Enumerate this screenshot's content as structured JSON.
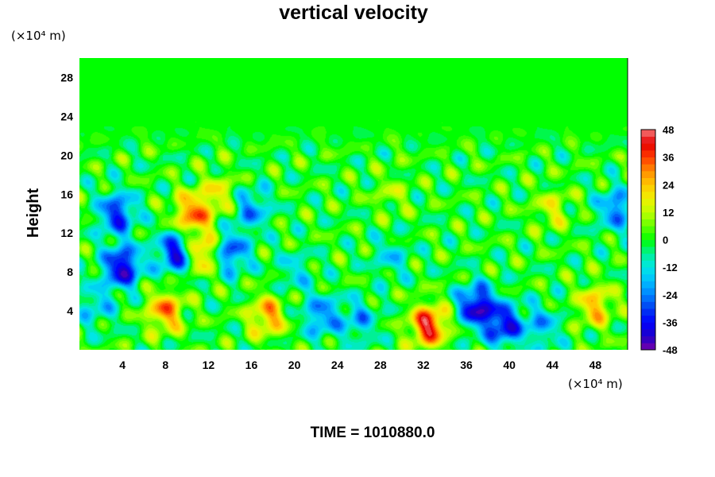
{
  "chart_data": {
    "type": "heatmap",
    "title": "vertical velocity",
    "ylabel": "Height",
    "x_unit_label": "(×10⁴ m)",
    "y_unit_label": "(×10⁴ m)",
    "x_ticks": [
      4,
      8,
      12,
      16,
      20,
      24,
      28,
      32,
      36,
      40,
      44,
      48
    ],
    "y_ticks": [
      4,
      8,
      12,
      16,
      20,
      24,
      28
    ],
    "xlim": [
      0,
      51
    ],
    "ylim": [
      0,
      30
    ],
    "colorbar": {
      "ticks": [
        48,
        36,
        24,
        12,
        0,
        -12,
        -24,
        -36,
        -48
      ],
      "range": [
        -48,
        48
      ]
    },
    "features": [
      {
        "x": 8,
        "y": 4,
        "value": 30
      },
      {
        "x": 17.5,
        "y": 3.5,
        "value": 27
      },
      {
        "x": 32.5,
        "y": 2.5,
        "value": 42
      },
      {
        "x": 48,
        "y": 4.5,
        "value": 24
      },
      {
        "x": 10.5,
        "y": 14,
        "value": 32
      },
      {
        "x": 11.5,
        "y": 10,
        "value": 30
      },
      {
        "x": 13,
        "y": 16,
        "value": 16
      },
      {
        "x": 44,
        "y": 14.5,
        "value": 14
      },
      {
        "x": 29,
        "y": 16,
        "value": 9
      },
      {
        "x": 22.5,
        "y": 3.5,
        "value": -24
      },
      {
        "x": 26,
        "y": 3,
        "value": -18
      },
      {
        "x": 37,
        "y": 4.5,
        "value": -42
      },
      {
        "x": 39.5,
        "y": 2.5,
        "value": -36
      },
      {
        "x": 4,
        "y": 8.5,
        "value": -42
      },
      {
        "x": 3.5,
        "y": 14,
        "value": -33
      },
      {
        "x": 16,
        "y": 14.5,
        "value": -22
      },
      {
        "x": 9,
        "y": 10,
        "value": -38
      },
      {
        "x": 14,
        "y": 10,
        "value": -30
      },
      {
        "x": 50,
        "y": 14.5,
        "value": -26
      },
      {
        "x": 1.5,
        "y": 4.5,
        "value": -15
      },
      {
        "x": 43,
        "y": 2.5,
        "value": -18
      },
      {
        "x": 20,
        "y": 8,
        "value": -12
      },
      {
        "x": 29,
        "y": 9.5,
        "value": -13
      }
    ],
    "annotation": "TIME = 1010880.0"
  }
}
